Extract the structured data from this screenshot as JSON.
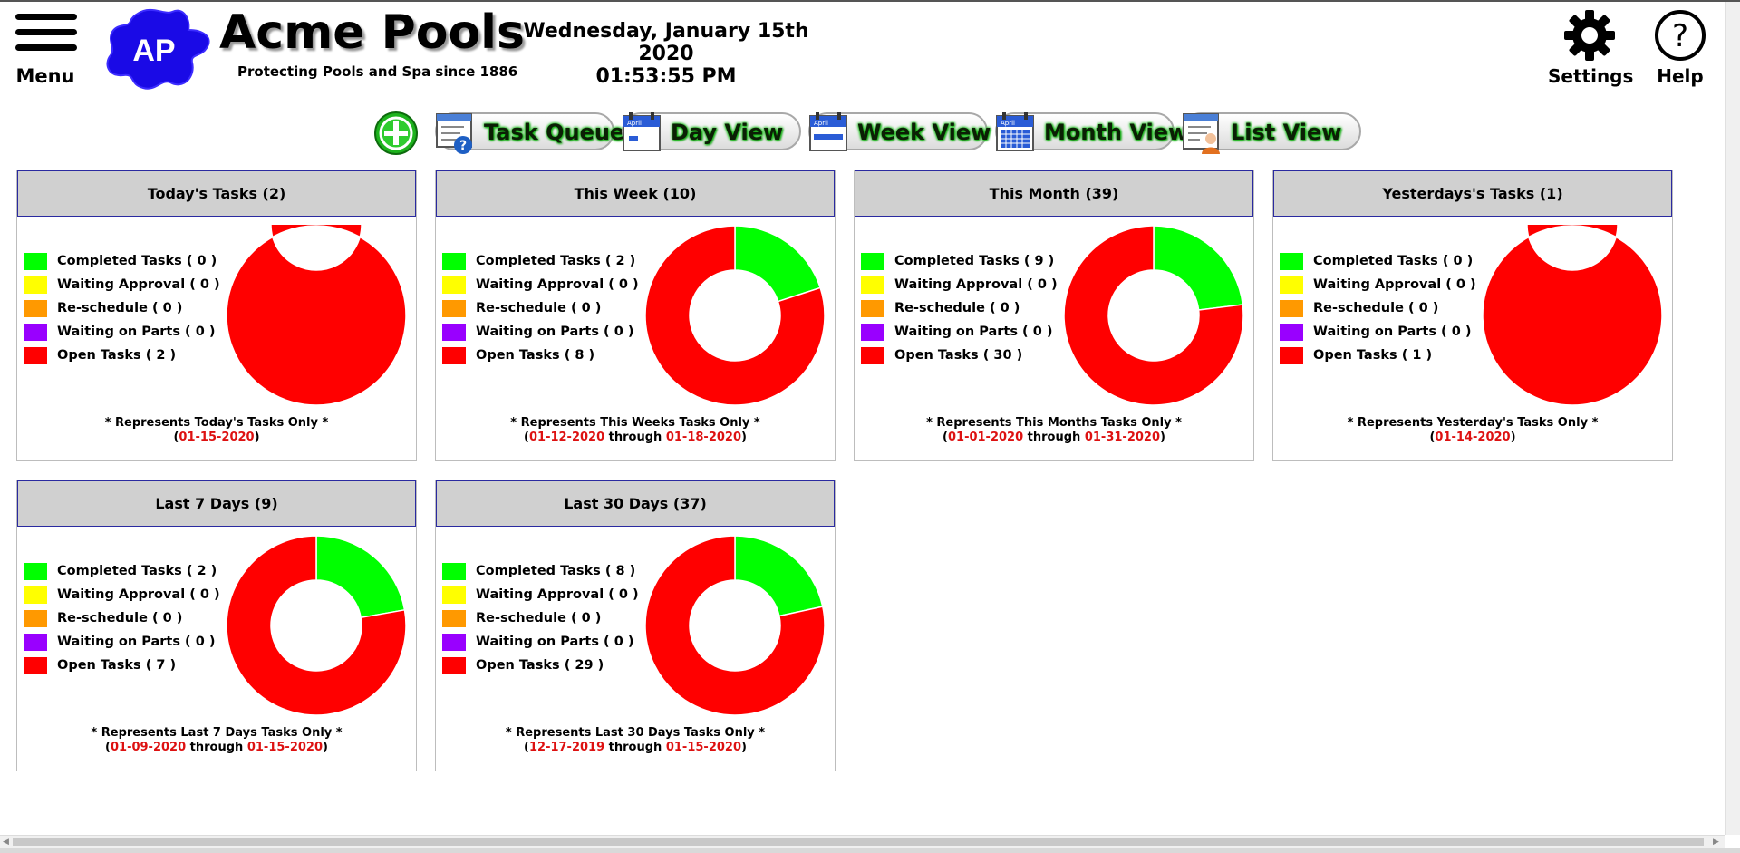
{
  "header": {
    "menu_label": "Menu",
    "logo_initials": "AP",
    "brand_title": "Acme Pools",
    "brand_tagline": "Protecting Pools and Spa since 1886",
    "date": "Wednesday, January 15th 2020",
    "time": "01:53:55 PM",
    "settings_label": "Settings",
    "help_label": "Help"
  },
  "toolbar": {
    "add_icon": "plus-circle-icon",
    "buttons": [
      {
        "label": "Task Queue",
        "icon": "task-queue-icon"
      },
      {
        "label": "Day View",
        "icon": "calendar-day-icon"
      },
      {
        "label": "Week View",
        "icon": "calendar-week-icon"
      },
      {
        "label": "Month View",
        "icon": "calendar-month-icon"
      },
      {
        "label": "List View",
        "icon": "list-person-icon"
      }
    ],
    "calendar_icon_text": "April"
  },
  "colors": {
    "completed": "#00ff00",
    "waiting_approval": "#ffff00",
    "reschedule": "#ff9900",
    "waiting_parts": "#9900ff",
    "open": "#ff0000",
    "date_red": "#dd1111",
    "panel_header_bg": "#d0d0d0",
    "panel_header_border": "#2a2aa0"
  },
  "legend_labels": {
    "completed": "Completed Tasks",
    "waiting_approval": "Waiting Approval",
    "reschedule": "Re-schedule",
    "waiting_parts": "Waiting on Parts",
    "open": "Open Tasks"
  },
  "panels": [
    {
      "title": "Today's Tasks (2)",
      "completed": "( 0 )",
      "waiting_approval": "( 0 )",
      "reschedule": "( 0 )",
      "waiting_parts": "( 0 )",
      "open": "( 2 )",
      "note": "* Represents Today's Tasks Only *",
      "date_start": "01-15-2020",
      "through": "",
      "date_end": ""
    },
    {
      "title": "This Week (10)",
      "completed": "( 2 )",
      "waiting_approval": "( 0 )",
      "reschedule": "( 0 )",
      "waiting_parts": "( 0 )",
      "open": "( 8 )",
      "note": "* Represents This Weeks Tasks Only *",
      "date_start": "01-12-2020",
      "through": "through",
      "date_end": "01-18-2020"
    },
    {
      "title": "This Month (39)",
      "completed": "( 9 )",
      "waiting_approval": "( 0 )",
      "reschedule": "( 0 )",
      "waiting_parts": "( 0 )",
      "open": "( 30 )",
      "note": "* Represents This Months Tasks Only *",
      "date_start": "01-01-2020",
      "through": "through",
      "date_end": "01-31-2020"
    },
    {
      "title": "Yesterdays's Tasks (1)",
      "completed": "( 0 )",
      "waiting_approval": "( 0 )",
      "reschedule": "( 0 )",
      "waiting_parts": "( 0 )",
      "open": "( 1 )",
      "note": "* Represents Yesterday's Tasks Only *",
      "date_start": "01-14-2020",
      "through": "",
      "date_end": ""
    },
    {
      "title": "Last 7 Days (9)",
      "completed": "( 2 )",
      "waiting_approval": "( 0 )",
      "reschedule": "( 0 )",
      "waiting_parts": "( 0 )",
      "open": "( 7 )",
      "note": "* Represents Last 7 Days Tasks Only *",
      "date_start": "01-09-2020",
      "through": "through",
      "date_end": "01-15-2020"
    },
    {
      "title": "Last 30 Days (37)",
      "completed": "( 8 )",
      "waiting_approval": "( 0 )",
      "reschedule": "( 0 )",
      "waiting_parts": "( 0 )",
      "open": "( 29 )",
      "note": "* Represents Last 30 Days Tasks Only *",
      "date_start": "12-17-2019",
      "through": "through",
      "date_end": "01-15-2020"
    }
  ],
  "chart_data": [
    {
      "type": "pie",
      "title": "Today's Tasks (2)",
      "categories": [
        "Completed Tasks",
        "Waiting Approval",
        "Re-schedule",
        "Waiting on Parts",
        "Open Tasks"
      ],
      "values": [
        0,
        0,
        0,
        0,
        2
      ]
    },
    {
      "type": "pie",
      "title": "This Week (10)",
      "categories": [
        "Completed Tasks",
        "Waiting Approval",
        "Re-schedule",
        "Waiting on Parts",
        "Open Tasks"
      ],
      "values": [
        2,
        0,
        0,
        0,
        8
      ]
    },
    {
      "type": "pie",
      "title": "This Month (39)",
      "categories": [
        "Completed Tasks",
        "Waiting Approval",
        "Re-schedule",
        "Waiting on Parts",
        "Open Tasks"
      ],
      "values": [
        9,
        0,
        0,
        0,
        30
      ]
    },
    {
      "type": "pie",
      "title": "Yesterdays's Tasks (1)",
      "categories": [
        "Completed Tasks",
        "Waiting Approval",
        "Re-schedule",
        "Waiting on Parts",
        "Open Tasks"
      ],
      "values": [
        0,
        0,
        0,
        0,
        1
      ]
    },
    {
      "type": "pie",
      "title": "Last 7 Days (9)",
      "categories": [
        "Completed Tasks",
        "Waiting Approval",
        "Re-schedule",
        "Waiting on Parts",
        "Open Tasks"
      ],
      "values": [
        2,
        0,
        0,
        0,
        7
      ]
    },
    {
      "type": "pie",
      "title": "Last 30 Days (37)",
      "categories": [
        "Completed Tasks",
        "Waiting Approval",
        "Re-schedule",
        "Waiting on Parts",
        "Open Tasks"
      ],
      "values": [
        8,
        0,
        0,
        0,
        29
      ]
    }
  ]
}
